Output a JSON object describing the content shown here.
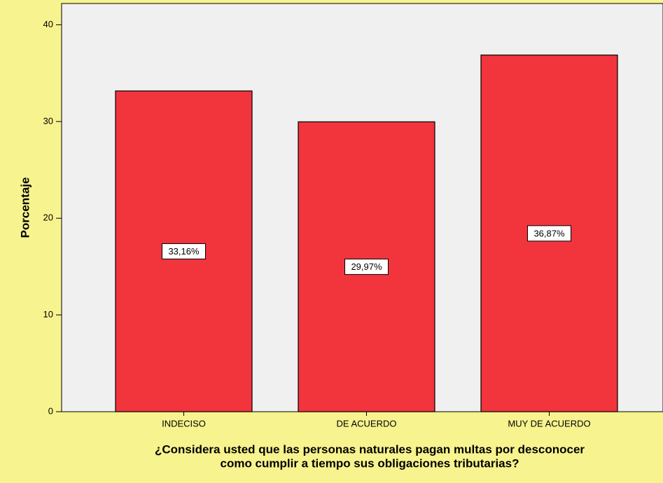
{
  "chart_data": {
    "type": "bar",
    "x_label": [
      "¿Considera usted que las personas naturales pagan multas por desconocer",
      "como cumplir a tiempo sus obligaciones tributarias?"
    ],
    "y_label": "Porcentaje",
    "categories": [
      "INDECISO",
      "DE ACUERDO",
      "MUY DE ACUERDO"
    ],
    "values": [
      33.16,
      29.97,
      36.87
    ],
    "value_labels": [
      "33,16%",
      "29,97%",
      "36,87%"
    ],
    "color": "#f2343d",
    "ylim": [
      0,
      42.2
    ],
    "yticks": [
      0,
      10,
      20,
      30,
      40
    ],
    "grid": false
  }
}
